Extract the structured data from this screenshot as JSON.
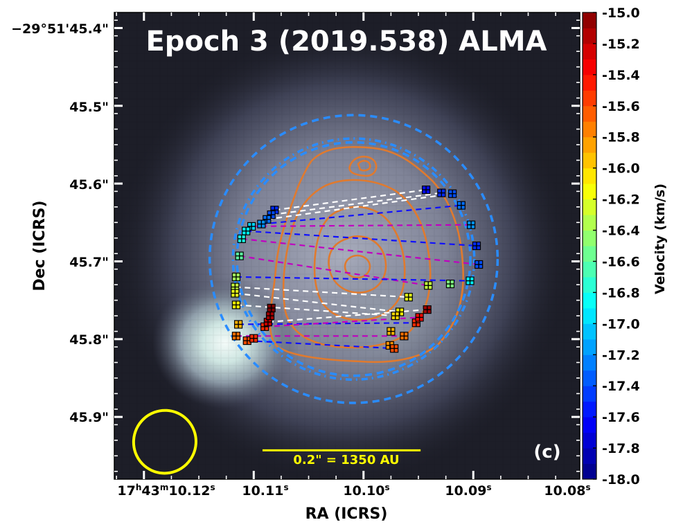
{
  "chart_data": {
    "type": "scatter",
    "title": "Epoch 3 (2019.538) ALMA",
    "panel_label": "(c)",
    "xlabel": "RA (ICRS)",
    "ylabel": "Dec (ICRS)",
    "colorbar_label": "Velocity (km/s)",
    "colorbar_range": [
      -18.0,
      -15.0
    ],
    "colorbar_ticks": [
      "-15.0",
      "-15.2",
      "-15.4",
      "-15.6",
      "-15.8",
      "-16.0",
      "-16.2",
      "-16.4",
      "-16.6",
      "-16.8",
      "-17.0",
      "-17.2",
      "-17.4",
      "-17.6",
      "-17.8",
      "-18.0"
    ],
    "x_ticks": [
      {
        "value": 10.12,
        "label_hms": "17h43m10.12s"
      },
      {
        "value": 10.11,
        "label": "10.11",
        "sup": "s"
      },
      {
        "value": 10.1,
        "label": "10.10",
        "sup": "s"
      },
      {
        "value": 10.09,
        "label": "10.09",
        "sup": "s"
      },
      {
        "value": 10.08,
        "label": "10.08",
        "sup": "s"
      }
    ],
    "x_hms": {
      "h": "17",
      "m": "43",
      "s": "10.12"
    },
    "xlim": [
      10.1227,
      10.0803
    ],
    "y_ticks": [
      {
        "value": 45.4,
        "label": "−29°51'45.4\""
      },
      {
        "value": 45.5,
        "label": "45.5\""
      },
      {
        "value": 45.6,
        "label": "45.6\""
      },
      {
        "value": 45.7,
        "label": "45.7\""
      },
      {
        "value": 45.8,
        "label": "45.8\""
      },
      {
        "value": 45.9,
        "label": "45.9\""
      }
    ],
    "ylim": [
      45.98,
      45.38
    ],
    "scale_bar": {
      "label": "0.2\" = 1350 AU",
      "length_arcsec": 0.2,
      "ra_start": 10.1092,
      "ra_end": 10.0948,
      "dec": 45.943
    },
    "beam": {
      "center": [
        10.1181,
        45.932
      ],
      "major_arcsec": 0.085,
      "minor_arcsec": 0.05,
      "angle_deg": 25
    },
    "rings": [
      {
        "style": "dashed",
        "center": [
          10.1009,
          45.697
        ],
        "radius": 0.185
      },
      {
        "style": "dashdot",
        "center": [
          10.1009,
          45.697
        ],
        "radius": 0.155
      },
      {
        "style": "dashed",
        "center": [
          10.1009,
          45.697
        ],
        "radius": 0.15
      }
    ],
    "maser_spots": [
      {
        "ra": 10.1081,
        "dec": 45.634,
        "v": -17.5
      },
      {
        "ra": 10.1084,
        "dec": 45.64,
        "v": -17.4
      },
      {
        "ra": 10.1088,
        "dec": 45.646,
        "v": -17.3
      },
      {
        "ra": 10.1093,
        "dec": 45.652,
        "v": -17.2
      },
      {
        "ra": 10.1102,
        "dec": 45.655,
        "v": -17.0
      },
      {
        "ra": 10.1107,
        "dec": 45.661,
        "v": -16.9
      },
      {
        "ra": 10.1111,
        "dec": 45.671,
        "v": -16.8
      },
      {
        "ra": 10.1113,
        "dec": 45.693,
        "v": -16.6
      },
      {
        "ra": 10.1116,
        "dec": 45.72,
        "v": -16.4
      },
      {
        "ra": 10.1117,
        "dec": 45.733,
        "v": -16.3
      },
      {
        "ra": 10.1117,
        "dec": 45.741,
        "v": -16.2
      },
      {
        "ra": 10.1116,
        "dec": 45.756,
        "v": -16.1
      },
      {
        "ra": 10.1114,
        "dec": 45.781,
        "v": -15.9
      },
      {
        "ra": 10.1116,
        "dec": 45.796,
        "v": -15.7
      },
      {
        "ra": 10.1106,
        "dec": 45.802,
        "v": -15.6
      },
      {
        "ra": 10.11,
        "dec": 45.799,
        "v": -15.5
      },
      {
        "ra": 10.109,
        "dec": 45.784,
        "v": -15.5
      },
      {
        "ra": 10.1087,
        "dec": 45.778,
        "v": -15.2
      },
      {
        "ra": 10.1085,
        "dec": 45.77,
        "v": -15.1
      },
      {
        "ra": 10.1084,
        "dec": 45.76,
        "v": -15.0
      },
      {
        "ra": 10.0943,
        "dec": 45.608,
        "v": -17.6
      },
      {
        "ra": 10.0929,
        "dec": 45.612,
        "v": -17.5
      },
      {
        "ra": 10.0919,
        "dec": 45.613,
        "v": -17.4
      },
      {
        "ra": 10.0911,
        "dec": 45.628,
        "v": -17.3
      },
      {
        "ra": 10.0902,
        "dec": 45.653,
        "v": -17.2
      },
      {
        "ra": 10.0897,
        "dec": 45.68,
        "v": -17.5
      },
      {
        "ra": 10.0895,
        "dec": 45.704,
        "v": -17.4
      },
      {
        "ra": 10.0903,
        "dec": 45.725,
        "v": -16.9
      },
      {
        "ra": 10.0921,
        "dec": 45.729,
        "v": -16.5
      },
      {
        "ra": 10.0941,
        "dec": 45.731,
        "v": -16.3
      },
      {
        "ra": 10.0959,
        "dec": 45.746,
        "v": -16.2
      },
      {
        "ra": 10.0967,
        "dec": 45.765,
        "v": -16.1
      },
      {
        "ra": 10.0971,
        "dec": 45.77,
        "v": -16.0
      },
      {
        "ra": 10.0975,
        "dec": 45.79,
        "v": -15.9
      },
      {
        "ra": 10.0976,
        "dec": 45.808,
        "v": -15.8
      },
      {
        "ra": 10.0972,
        "dec": 45.812,
        "v": -15.6
      },
      {
        "ra": 10.0963,
        "dec": 45.796,
        "v": -15.7
      },
      {
        "ra": 10.0952,
        "dec": 45.779,
        "v": -15.5
      },
      {
        "ra": 10.0949,
        "dec": 45.772,
        "v": -15.4
      },
      {
        "ra": 10.0942,
        "dec": 45.762,
        "v": -15.1
      }
    ],
    "pairing_lines": [
      {
        "style": "white",
        "from": [
          10.1081,
          45.634
        ],
        "to": [
          10.0943,
          45.608
        ]
      },
      {
        "style": "white",
        "from": [
          10.1084,
          45.64
        ],
        "to": [
          10.0929,
          45.612
        ]
      },
      {
        "style": "white",
        "from": [
          10.1088,
          45.646
        ],
        "to": [
          10.0919,
          45.613
        ]
      },
      {
        "style": "blue",
        "from": [
          10.1093,
          45.652
        ],
        "to": [
          10.0911,
          45.628
        ]
      },
      {
        "style": "magenta",
        "from": [
          10.1102,
          45.655
        ],
        "to": [
          10.0902,
          45.653
        ]
      },
      {
        "style": "blue",
        "from": [
          10.1107,
          45.661
        ],
        "to": [
          10.0897,
          45.68
        ]
      },
      {
        "style": "magenta",
        "from": [
          10.1111,
          45.671
        ],
        "to": [
          10.0895,
          45.704
        ]
      },
      {
        "style": "magenta",
        "from": [
          10.1113,
          45.693
        ],
        "to": [
          10.0941,
          45.731
        ]
      },
      {
        "style": "blue",
        "from": [
          10.1116,
          45.72
        ],
        "to": [
          10.0903,
          45.725
        ]
      },
      {
        "style": "white",
        "from": [
          10.1117,
          45.733
        ],
        "to": [
          10.0959,
          45.746
        ]
      },
      {
        "style": "white",
        "from": [
          10.1117,
          45.741
        ],
        "to": [
          10.0967,
          45.765
        ]
      },
      {
        "style": "white",
        "from": [
          10.1116,
          45.756
        ],
        "to": [
          10.0971,
          45.77
        ]
      },
      {
        "style": "blue",
        "from": [
          10.1114,
          45.781
        ],
        "to": [
          10.0952,
          45.779
        ]
      },
      {
        "style": "magenta",
        "from": [
          10.1116,
          45.796
        ],
        "to": [
          10.0963,
          45.796
        ]
      },
      {
        "style": "blue",
        "from": [
          10.1106,
          45.802
        ],
        "to": [
          10.0972,
          45.812
        ]
      },
      {
        "style": "magenta",
        "from": [
          10.109,
          45.784
        ],
        "to": [
          10.0949,
          45.772
        ]
      },
      {
        "style": "white",
        "from": [
          10.1087,
          45.778
        ],
        "to": [
          10.0942,
          45.762
        ]
      }
    ]
  }
}
